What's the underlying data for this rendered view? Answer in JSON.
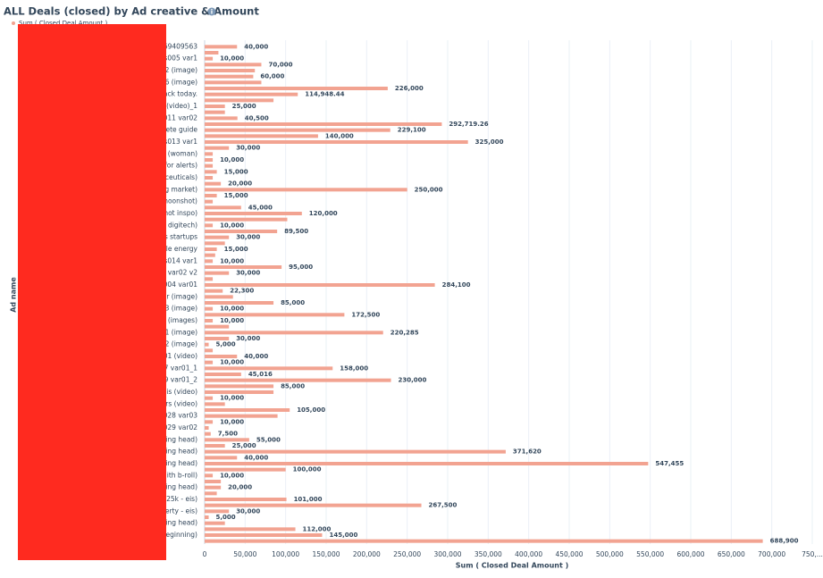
{
  "chart_data": {
    "type": "hbar",
    "title": "ALL Deals (closed) by Ad creative & Amount",
    "x_label": "Sum ( Closed Deal Amount )",
    "y_label": "Ad name",
    "categories": [
      "69409563",
      null,
      "s005 var1",
      null,
      "2 (image)",
      null,
      "6 (image)",
      null,
      "ack today.",
      null,
      "(video)_1",
      null,
      "011 var02",
      null,
      "lete guide",
      null,
      "gs013 var1",
      null,
      "(woman)",
      null,
      "for alerts)",
      null,
      "ceuticals)",
      null,
      "g market)",
      null,
      "hoonshot)",
      null,
      "hot inspo)",
      null,
      "l digitech)",
      null,
      "s startups",
      null,
      "ble energy",
      null,
      "s014 var1",
      null,
      "5 var02 v2",
      null,
      "004 var01",
      null,
      "r (image)",
      null,
      "3 (image)",
      null,
      "(images)",
      null,
      "1 (image)",
      null,
      "2 (image)",
      null,
      "01 (video)",
      null,
      "7 var01_1",
      null,
      "9 var01_2",
      null,
      "sis (video)",
      null,
      "rs (video)",
      null,
      "028 var03",
      null,
      "029 var02",
      null,
      "ing head)",
      null,
      "ing head)",
      null,
      "ing head)",
      null,
      "ith b-roll)",
      null,
      "ing head)",
      null,
      "125k - eis)",
      null,
      "erty - eis)",
      null,
      "ing head)",
      null,
      "beginning)",
      null
    ],
    "series": [
      {
        "name": "Sum ( Closed Deal Amount )",
        "color": "#f2a391",
        "values": [
          40000,
          17000,
          10000,
          70000,
          62000,
          60000,
          70000,
          226000,
          114948.44,
          85000,
          25000,
          25000,
          40500,
          292719.26,
          229100,
          140000,
          325000,
          30000,
          10000,
          10000,
          10000,
          15000,
          10000,
          20000,
          250000,
          15000,
          10000,
          45000,
          120000,
          102000,
          10000,
          89500,
          30000,
          25000,
          15000,
          13000,
          10000,
          95000,
          30000,
          10000,
          284100,
          22300,
          35000,
          85000,
          10000,
          172500,
          10000,
          30000,
          220285,
          30000,
          5000,
          10000,
          40000,
          10000,
          158000,
          45016,
          230000,
          85000,
          85000,
          10000,
          25000,
          105000,
          90000,
          10000,
          5000,
          7500,
          55000,
          25000,
          371620,
          40000,
          547455,
          100000,
          10000,
          20000,
          20000,
          15000,
          101000,
          267500,
          30000,
          5000,
          25000,
          112000,
          145000,
          688900
        ],
        "value_labels": [
          "40,000",
          null,
          "10,000",
          "70,000",
          null,
          "60,000",
          null,
          "226,000",
          "114,948.44",
          null,
          "25,000",
          null,
          "40,500",
          "292,719.26",
          "229,100",
          "140,000",
          "325,000",
          "30,000",
          null,
          "10,000",
          null,
          "15,000",
          null,
          "20,000",
          "250,000",
          "15,000",
          null,
          "45,000",
          "120,000",
          null,
          "10,000",
          "89,500",
          "30,000",
          null,
          "15,000",
          null,
          "10,000",
          "95,000",
          "30,000",
          null,
          "284,100",
          "22,300",
          null,
          "85,000",
          "10,000",
          "172,500",
          "10,000",
          null,
          "220,285",
          "30,000",
          "5,000",
          null,
          "40,000",
          "10,000",
          "158,000",
          "45,016",
          "230,000",
          "85,000",
          null,
          "10,000",
          null,
          "105,000",
          null,
          "10,000",
          null,
          "7,500",
          "55,000",
          "25,000",
          "371,620",
          "40,000",
          "547,455",
          "100,000",
          "10,000",
          null,
          "20,000",
          null,
          "101,000",
          "267,500",
          "30,000",
          "5,000",
          null,
          "112,000",
          "145,000",
          "688,900"
        ]
      }
    ],
    "xlim": [
      0,
      750000
    ],
    "xticks": [
      0,
      {
        "value": 50000,
        "label": "50,000"
      },
      {
        "value": 100000,
        "label": "100,000"
      },
      {
        "value": 150000,
        "label": "150,000"
      },
      {
        "value": 200000,
        "label": "200,000"
      },
      {
        "value": 250000,
        "label": "250,000"
      },
      {
        "value": 300000,
        "label": "300,000"
      },
      {
        "value": 350000,
        "label": "350,000"
      },
      {
        "value": 400000,
        "label": "400,000"
      },
      {
        "value": 450000,
        "label": "450,000"
      },
      {
        "value": 500000,
        "label": "500,000"
      },
      {
        "value": 550000,
        "label": "550,000"
      },
      {
        "value": 600000,
        "label": "600,000"
      },
      {
        "value": 650000,
        "label": "650,000"
      },
      {
        "value": 700000,
        "label": "700,000"
      },
      {
        "value": 750000,
        "label": "750,..."
      }
    ],
    "grid": true
  }
}
